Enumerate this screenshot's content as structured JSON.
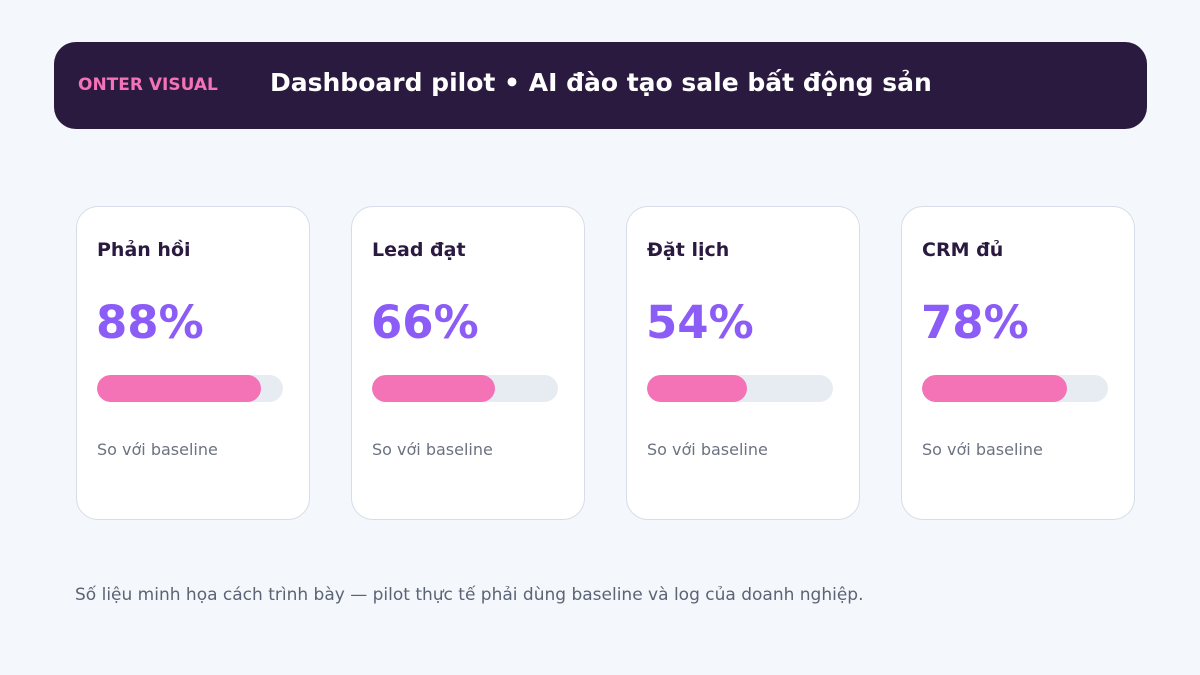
{
  "header": {
    "brand": "ONTER VISUAL",
    "title": "Dashboard pilot • AI đào tạo sale bất động sản"
  },
  "cards": [
    {
      "label": "Phản hồi",
      "value": "88%",
      "progress": 0.88,
      "note": "So với baseline"
    },
    {
      "label": "Lead đạt",
      "value": "66%",
      "progress": 0.66,
      "note": "So với baseline"
    },
    {
      "label": "Đặt lịch",
      "value": "54%",
      "progress": 0.54,
      "note": "So với baseline"
    },
    {
      "label": "CRM đủ",
      "value": "78%",
      "progress": 0.78,
      "note": "So với baseline"
    }
  ],
  "footnote": "Số liệu minh họa cách trình bày — pilot thực tế phải dùng baseline và log của doanh nghiệp.",
  "colors": {
    "header_bg": "#2b1a3f",
    "brand": "#f472b6",
    "value": "#8b5cf6",
    "bar_fill": "#f472b6",
    "bar_track": "#e7ecf3",
    "page_bg": "#f4f7fb"
  }
}
